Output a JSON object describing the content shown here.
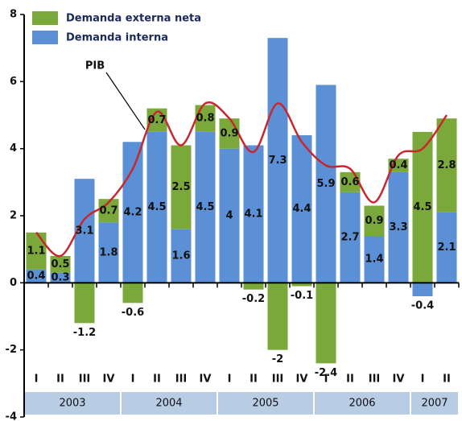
{
  "chart_data": {
    "type": "bar",
    "stacked": true,
    "groups": [
      {
        "label": "2003",
        "quarters": [
          "I",
          "II",
          "III",
          "IV"
        ]
      },
      {
        "label": "2004",
        "quarters": [
          "I",
          "II",
          "III",
          "IV"
        ]
      },
      {
        "label": "2005",
        "quarters": [
          "I",
          "II",
          "III",
          "IV"
        ]
      },
      {
        "label": "2006",
        "quarters": [
          "I",
          "II",
          "III",
          "IV"
        ]
      },
      {
        "label": "2007",
        "quarters": [
          "I",
          "II"
        ]
      }
    ],
    "series": [
      {
        "name": "Demanda interna",
        "color": "#5b8fd6",
        "values": [
          0.4,
          0.3,
          3.1,
          1.8,
          4.2,
          4.5,
          1.6,
          4.5,
          4.0,
          4.1,
          7.3,
          4.4,
          5.9,
          2.7,
          1.4,
          3.3,
          -0.4,
          2.1
        ]
      },
      {
        "name": "Demanda externa neta",
        "color": "#7aa83a",
        "values": [
          1.1,
          0.5,
          -1.2,
          0.7,
          -0.6,
          0.7,
          2.5,
          0.8,
          0.9,
          -0.2,
          -2.0,
          -0.1,
          -2.4,
          0.6,
          0.9,
          0.4,
          4.5,
          2.8
        ]
      }
    ],
    "line": {
      "name": "PIB",
      "color": "#c8282d",
      "values": [
        1.5,
        0.8,
        1.9,
        2.4,
        3.4,
        5.1,
        4.1,
        5.35,
        4.9,
        3.9,
        5.35,
        4.2,
        3.5,
        3.4,
        2.4,
        3.8,
        4.0,
        5.0
      ]
    },
    "ylim": [
      -4,
      8
    ],
    "yticks": [
      -4,
      -2,
      0,
      2,
      4,
      6,
      8
    ],
    "legend": "top-left"
  }
}
